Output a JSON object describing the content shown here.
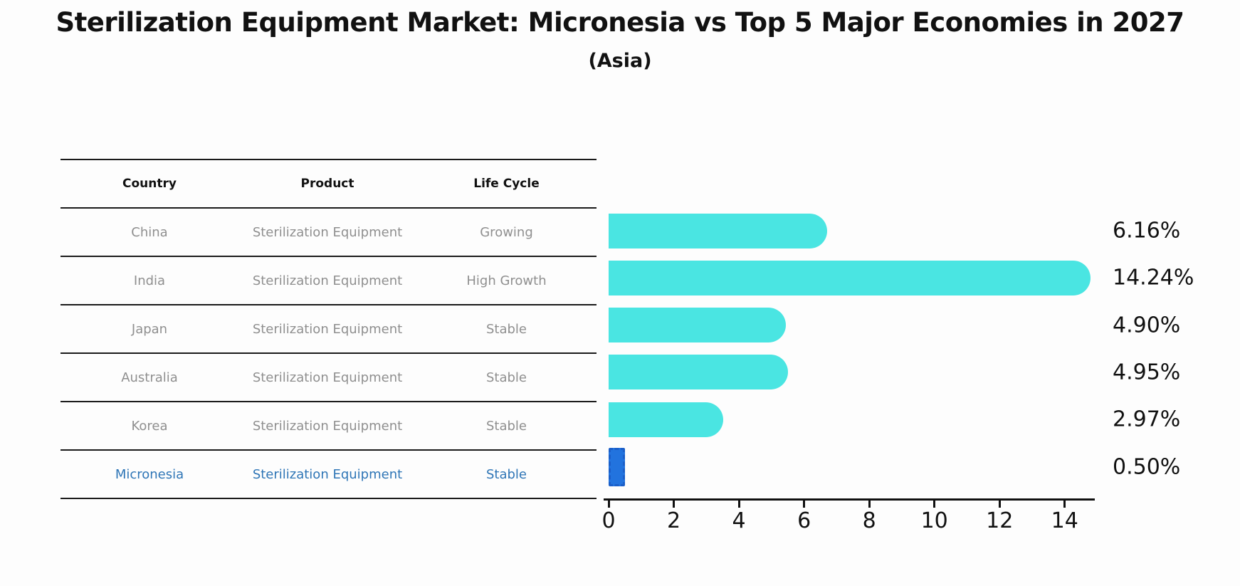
{
  "header": {
    "title": "Sterilization Equipment Market: Micronesia vs Top 5 Major Economies in 2027",
    "subtitle": "(Asia)"
  },
  "table": {
    "columns": [
      "Country",
      "Product",
      "Life Cycle"
    ],
    "rows": [
      {
        "country": "China",
        "product": "Sterilization Equipment",
        "life_cycle": "Growing",
        "highlight": false
      },
      {
        "country": "India",
        "product": "Sterilization Equipment",
        "life_cycle": "High Growth",
        "highlight": false
      },
      {
        "country": "Japan",
        "product": "Sterilization Equipment",
        "life_cycle": "Stable",
        "highlight": false
      },
      {
        "country": "Australia",
        "product": "Sterilization Equipment",
        "life_cycle": "Stable",
        "highlight": false
      },
      {
        "country": "Korea",
        "product": "Sterilization Equipment",
        "life_cycle": "Stable",
        "highlight": false
      },
      {
        "country": "Micronesia",
        "product": "Sterilization Equipment",
        "life_cycle": "Stable",
        "highlight": true
      }
    ]
  },
  "chart_data": {
    "type": "bar",
    "orientation": "horizontal",
    "title": "Sterilization Equipment Market: Micronesia vs Top 5 Major Economies in 2027 (Asia)",
    "categories": [
      "China",
      "India",
      "Japan",
      "Australia",
      "Korea",
      "Micronesia"
    ],
    "values": [
      6.16,
      14.24,
      4.9,
      4.95,
      2.97,
      0.5
    ],
    "value_labels": [
      "6.16%",
      "14.24%",
      "4.90%",
      "4.95%",
      "2.97%",
      "0.50%"
    ],
    "highlight_index": 5,
    "xlim": [
      0,
      15
    ],
    "xticks": [
      0,
      2,
      4,
      6,
      8,
      10,
      12,
      14
    ],
    "grid": false,
    "legend": "none",
    "bar_color": "#4ae5e2",
    "highlight_color": "#2273de",
    "highlight_border_color": "#1b5fc9",
    "value_label_position": "right-of-plot"
  },
  "colors": {
    "background": "#fdfdfd",
    "text": "#111111",
    "table_text_muted": "#8f8f8f",
    "highlight_text": "#2e75b6",
    "rule": "#1a1a1a"
  }
}
